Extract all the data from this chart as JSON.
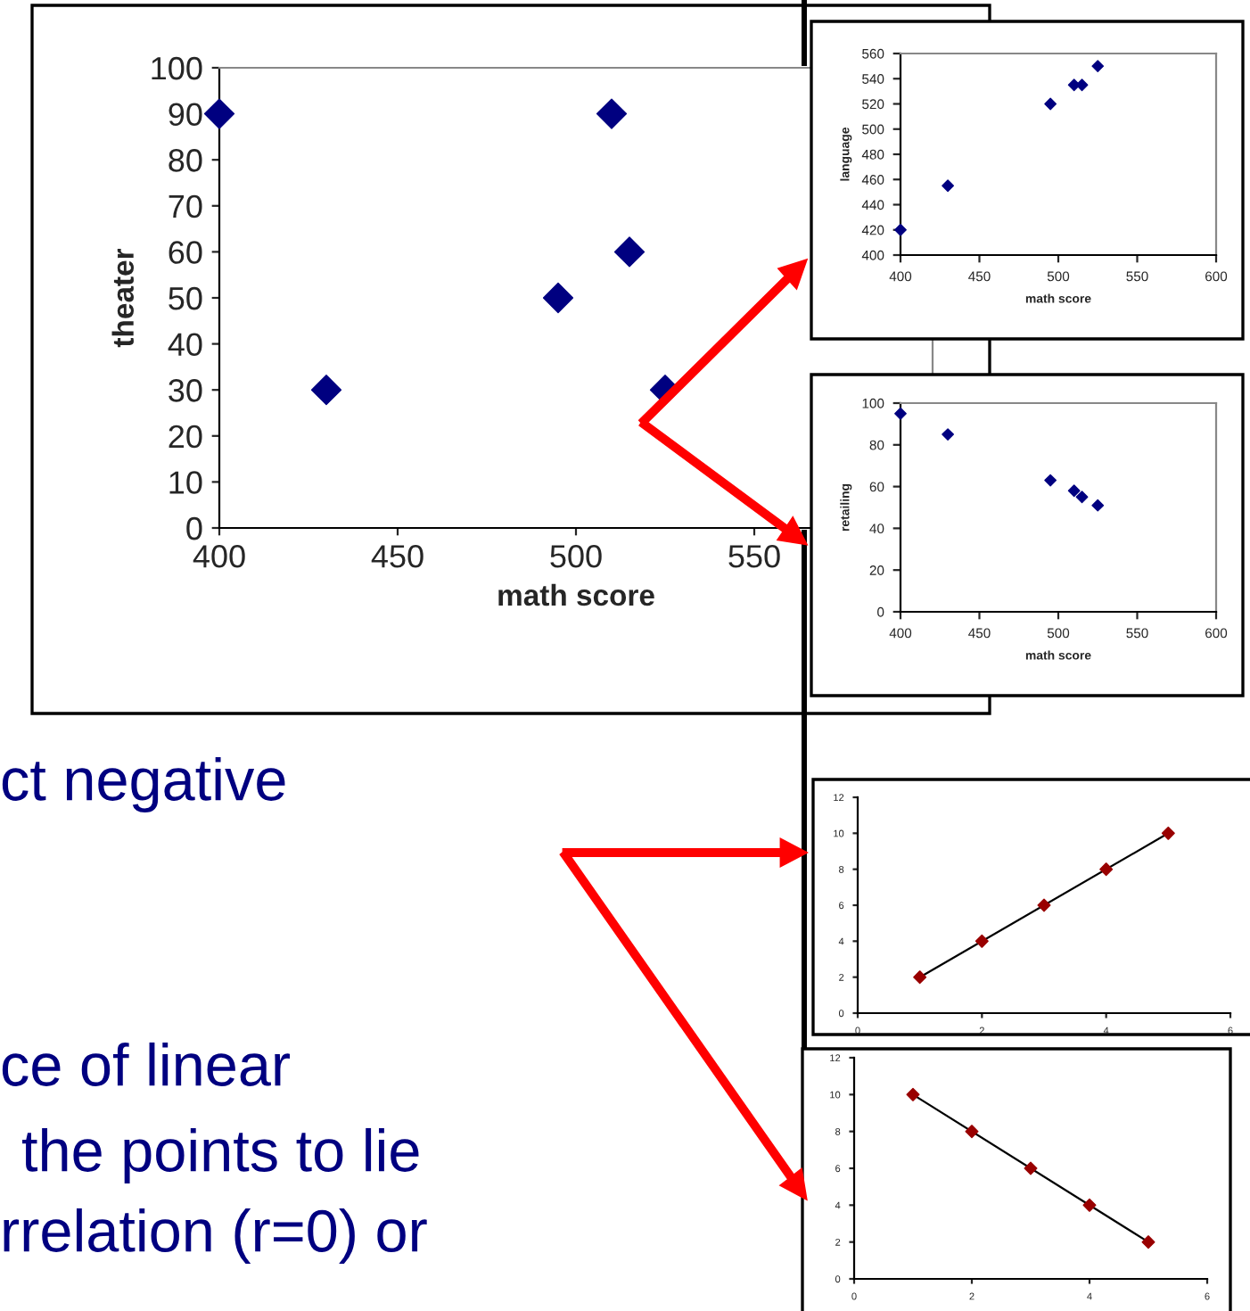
{
  "chart_data": [
    {
      "type": "scatter",
      "xlabel": "math score",
      "ylabel": "theater",
      "marker": "diamond",
      "xlim": [
        400,
        600
      ],
      "xticks": [
        400,
        450,
        500,
        550
      ],
      "ylim": [
        0,
        100
      ],
      "yticks": [
        0,
        10,
        20,
        30,
        40,
        50,
        60,
        70,
        80,
        90,
        100
      ],
      "grid": false,
      "series": [
        {
          "color": "#000080",
          "x": [
            400,
            430,
            495,
            510,
            515,
            525
          ],
          "values": [
            90,
            30,
            50,
            90,
            60,
            30
          ]
        }
      ]
    },
    {
      "type": "scatter",
      "xlabel": "math score",
      "ylabel": "language",
      "marker": "diamond",
      "xlim": [
        400,
        600
      ],
      "xticks": [
        400,
        450,
        500,
        550,
        600
      ],
      "ylim": [
        400,
        560
      ],
      "yticks": [
        400,
        420,
        440,
        460,
        480,
        500,
        520,
        540,
        560
      ],
      "grid": false,
      "series": [
        {
          "color": "#000080",
          "x": [
            400,
            430,
            495,
            510,
            515,
            525
          ],
          "values": [
            420,
            455,
            520,
            535,
            535,
            550
          ]
        }
      ]
    },
    {
      "type": "scatter",
      "xlabel": "math score",
      "ylabel": "retailing",
      "marker": "diamond",
      "xlim": [
        400,
        600
      ],
      "xticks": [
        400,
        450,
        500,
        550,
        600
      ],
      "ylim": [
        0,
        100
      ],
      "yticks": [
        0,
        20,
        40,
        60,
        80,
        100
      ],
      "grid": false,
      "series": [
        {
          "color": "#000080",
          "x": [
            400,
            430,
            495,
            510,
            515,
            525
          ],
          "values": [
            95,
            85,
            63,
            58,
            55,
            51
          ]
        }
      ]
    },
    {
      "type": "scatter",
      "xlim": [
        0,
        6
      ],
      "xticks": [
        0,
        2,
        4,
        6
      ],
      "ylim": [
        0,
        12
      ],
      "yticks": [
        0,
        2,
        4,
        6,
        8,
        10,
        12
      ],
      "grid": false,
      "series": [
        {
          "type": "line",
          "marker": "none",
          "color": "#000000",
          "x": [
            1,
            5
          ],
          "values": [
            2,
            10
          ]
        },
        {
          "type": "scatter",
          "marker": "diamond",
          "color": "#990000",
          "x": [
            1,
            2,
            3,
            4,
            5
          ],
          "values": [
            2,
            4,
            6,
            8,
            10
          ]
        }
      ]
    },
    {
      "type": "scatter",
      "xlim": [
        0,
        6
      ],
      "xticks": [
        0,
        2,
        4,
        6
      ],
      "ylim": [
        0,
        12
      ],
      "yticks": [
        0,
        2,
        4,
        6,
        8,
        10,
        12
      ],
      "grid": false,
      "series": [
        {
          "type": "line",
          "marker": "none",
          "color": "#000000",
          "x": [
            1,
            5
          ],
          "values": [
            10,
            2
          ]
        },
        {
          "type": "scatter",
          "marker": "diamond",
          "color": "#990000",
          "x": [
            1,
            2,
            3,
            4,
            5
          ],
          "values": [
            10,
            8,
            6,
            4,
            2
          ]
        }
      ]
    },
    {
      "type": "other",
      "annotations": [
        "ct negative",
        "ce of linear",
        "the points to lie",
        "rrelation (r=0) or"
      ]
    }
  ]
}
